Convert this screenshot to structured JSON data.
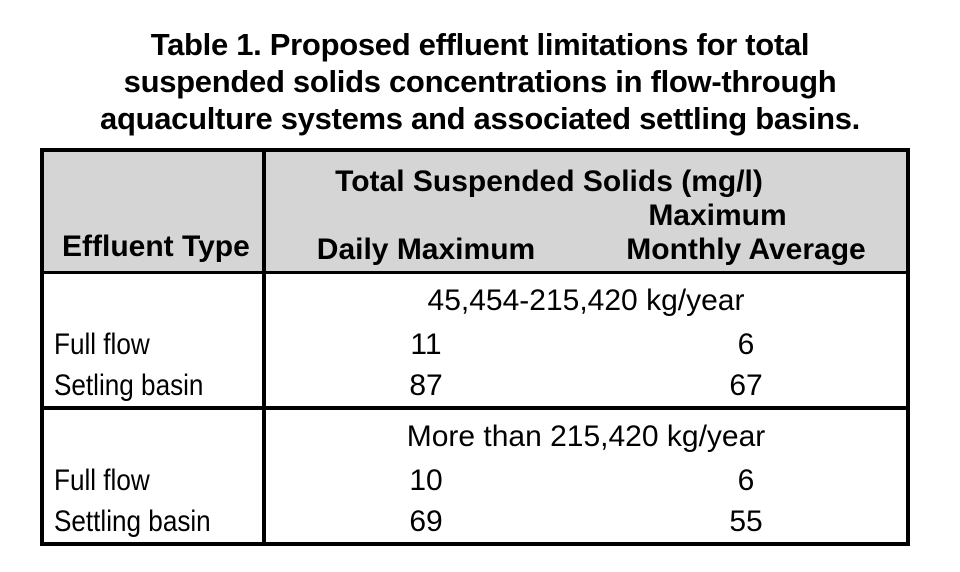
{
  "caption": {
    "line1": "Table 1. Proposed effluent limitations for total",
    "line2": "suspended solids concentrations in flow-through",
    "line3": "aquaculture systems and associated settling basins."
  },
  "table": {
    "header": {
      "effluent_type": "Effluent Type",
      "group_label": "Total Suspended Solids (mg/l)",
      "daily": "Daily Maximum",
      "monthly_line1": "Maximum",
      "monthly_line2": "Monthly Average"
    },
    "sections": [
      {
        "span_label": "45,454-215,420 kg/year",
        "rows": [
          {
            "label": "Full flow",
            "daily": "11",
            "monthly": "6"
          },
          {
            "label": "Setling basin",
            "daily": "87",
            "monthly": "67"
          }
        ]
      },
      {
        "span_label": "More than 215,420 kg/year",
        "rows": [
          {
            "label": "Full flow",
            "daily": "10",
            "monthly": "6"
          },
          {
            "label": "Settling basin",
            "daily": "69",
            "monthly": "55"
          }
        ]
      }
    ]
  },
  "colors": {
    "header_bg": "#d5d5d5",
    "border": "#000000",
    "text": "#000000",
    "background": "#ffffff"
  }
}
